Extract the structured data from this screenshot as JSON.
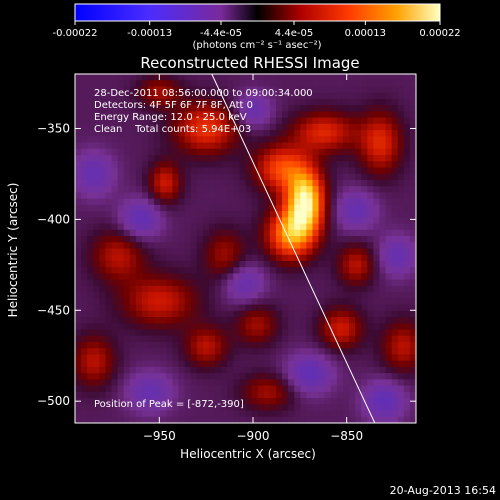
{
  "chart_data": {
    "type": "heatmap",
    "title": "Reconstructed RHESSI Image",
    "xlabel": "Heliocentric X (arcsec)",
    "ylabel": "Heliocentric Y (arcsec)",
    "xlim": [
      -995,
      -813
    ],
    "ylim": [
      -512,
      -320
    ],
    "x_ticks": [
      -950,
      -900,
      -850
    ],
    "y_ticks": [
      -350,
      -400,
      -450,
      -500
    ],
    "x_tick_labels": [
      "−950",
      "−900",
      "−850"
    ],
    "y_tick_labels": [
      "−350",
      "−400",
      "−450",
      "−500"
    ],
    "colorbar": {
      "range": [
        -0.00022,
        0.00022
      ],
      "tick_values": [
        -0.00022,
        -0.00013,
        -4.4e-05,
        4.4e-05,
        0.00013,
        0.00022
      ],
      "tick_labels": [
        "-0.00022",
        "-0.00013",
        "-4.4e-05",
        "4.4e-05",
        "0.00013",
        "0.00022"
      ],
      "unit_label": "(photons cm⁻² s⁻¹ asec⁻²)"
    },
    "annotations": [
      "28-Dec-2011 08:56:00.000 to 09:00:34.000",
      "Detectors: 4F 5F 6F 7F 8F, Att 0",
      "Energy Range: 12.0 - 25.0 keV",
      "Clean    Total counts: 5.94E+03"
    ],
    "peak_label": "Position of Peak = [-872,-390]",
    "peak": [
      -872,
      -390
    ],
    "limb_line": [
      [
        -922,
        -320
      ],
      [
        -835,
        -512
      ]
    ],
    "sources": [
      {
        "x": -872,
        "y": -390,
        "sx": 7,
        "sy": 12,
        "amp": 1.0
      },
      {
        "x": -880,
        "y": -408,
        "sx": 9,
        "sy": 10,
        "amp": 0.75
      },
      {
        "x": -885,
        "y": -372,
        "sx": 10,
        "sy": 9,
        "amp": 0.55
      },
      {
        "x": -925,
        "y": -350,
        "sx": 12,
        "sy": 10,
        "amp": 0.5
      },
      {
        "x": -947,
        "y": -380,
        "sx": 6,
        "sy": 8,
        "amp": 0.4
      },
      {
        "x": -862,
        "y": -352,
        "sx": 12,
        "sy": 8,
        "amp": 0.45
      },
      {
        "x": -832,
        "y": -358,
        "sx": 8,
        "sy": 12,
        "amp": 0.45
      },
      {
        "x": -972,
        "y": -420,
        "sx": 10,
        "sy": 10,
        "amp": 0.35
      },
      {
        "x": -950,
        "y": -445,
        "sx": 14,
        "sy": 10,
        "amp": 0.4
      },
      {
        "x": -985,
        "y": -478,
        "sx": 8,
        "sy": 10,
        "amp": 0.35
      },
      {
        "x": -925,
        "y": -470,
        "sx": 8,
        "sy": 8,
        "amp": 0.35
      },
      {
        "x": -898,
        "y": -458,
        "sx": 8,
        "sy": 8,
        "amp": 0.3
      },
      {
        "x": -853,
        "y": -460,
        "sx": 8,
        "sy": 8,
        "amp": 0.4
      },
      {
        "x": -820,
        "y": -470,
        "sx": 8,
        "sy": 10,
        "amp": 0.35
      },
      {
        "x": -892,
        "y": -495,
        "sx": 10,
        "sy": 7,
        "amp": 0.3
      },
      {
        "x": -845,
        "y": -425,
        "sx": 7,
        "sy": 8,
        "amp": 0.35
      },
      {
        "x": -915,
        "y": -420,
        "sx": 8,
        "sy": 10,
        "amp": 0.3
      },
      {
        "x": -950,
        "y": -330,
        "sx": 8,
        "sy": 6,
        "amp": 0.3
      },
      {
        "x": -960,
        "y": -400,
        "sx": 8,
        "sy": 8,
        "amp": -0.35
      },
      {
        "x": -905,
        "y": -435,
        "sx": 8,
        "sy": 8,
        "amp": -0.3
      },
      {
        "x": -845,
        "y": -395,
        "sx": 8,
        "sy": 8,
        "amp": -0.3
      },
      {
        "x": -870,
        "y": -485,
        "sx": 9,
        "sy": 8,
        "amp": -0.35
      },
      {
        "x": -955,
        "y": -495,
        "sx": 9,
        "sy": 8,
        "amp": -0.3
      },
      {
        "x": -985,
        "y": -375,
        "sx": 8,
        "sy": 9,
        "amp": -0.3
      },
      {
        "x": -900,
        "y": -340,
        "sx": 7,
        "sy": 7,
        "amp": -0.3
      },
      {
        "x": -830,
        "y": -500,
        "sx": 8,
        "sy": 8,
        "amp": -0.35
      },
      {
        "x": -823,
        "y": -420,
        "sx": 7,
        "sy": 8,
        "amp": -0.3
      }
    ]
  },
  "footer": {
    "timestamp": "20-Aug-2013 16:54"
  }
}
